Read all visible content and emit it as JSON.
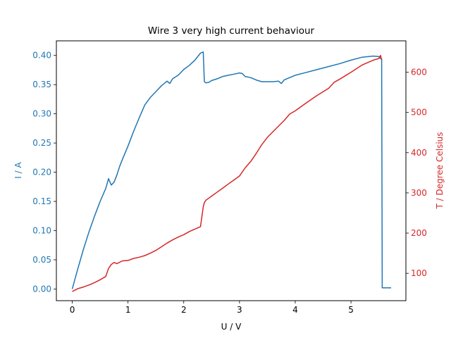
{
  "chart_data": {
    "type": "line",
    "title": "Wire 3 very high current behaviour",
    "xlabel": "U / V",
    "grid": false,
    "x_axis": {
      "range": [
        -0.285,
        5.985
      ],
      "ticks": [
        0,
        1,
        2,
        3,
        4,
        5
      ],
      "tick_labels": [
        "0",
        "1",
        "2",
        "3",
        "4",
        "5"
      ]
    },
    "y_left": {
      "label": "I / A",
      "color": "#1f77b4",
      "range": [
        -0.02,
        0.425
      ],
      "ticks": [
        0,
        0.05,
        0.1,
        0.15,
        0.2,
        0.25,
        0.3,
        0.35,
        0.4
      ],
      "tick_labels": [
        "0.00",
        "0.05",
        "0.10",
        "0.15",
        "0.20",
        "0.25",
        "0.30",
        "0.35",
        "0.40"
      ]
    },
    "y_right": {
      "label": "T / Degree Celsius",
      "color": "#d62728",
      "range": [
        32,
        678
      ],
      "ticks": [
        100,
        200,
        300,
        400,
        500,
        600
      ],
      "tick_labels": [
        "100",
        "200",
        "300",
        "400",
        "500",
        "600"
      ]
    },
    "series": [
      {
        "axis": "left",
        "color": "#1f77b4",
        "x": [
          0,
          0.1,
          0.2,
          0.3,
          0.4,
          0.5,
          0.6,
          0.63,
          0.65,
          0.7,
          0.75,
          0.8,
          0.85,
          0.9,
          1.0,
          1.1,
          1.2,
          1.3,
          1.4,
          1.5,
          1.6,
          1.7,
          1.75,
          1.8,
          1.9,
          2.0,
          2.1,
          2.2,
          2.3,
          2.35,
          2.37,
          2.4,
          2.45,
          2.5,
          2.6,
          2.7,
          2.8,
          2.9,
          3.0,
          3.05,
          3.1,
          3.2,
          3.3,
          3.4,
          3.5,
          3.6,
          3.7,
          3.75,
          3.8,
          3.9,
          4.0,
          4.2,
          4.4,
          4.6,
          4.8,
          5.0,
          5.2,
          5.4,
          5.5,
          5.52,
          5.53,
          5.55,
          5.56,
          5.6,
          5.72
        ],
        "y": [
          0.0,
          0.035,
          0.068,
          0.098,
          0.125,
          0.15,
          0.172,
          0.182,
          0.189,
          0.178,
          0.183,
          0.195,
          0.21,
          0.222,
          0.245,
          0.27,
          0.293,
          0.315,
          0.328,
          0.338,
          0.348,
          0.356,
          0.352,
          0.36,
          0.366,
          0.376,
          0.383,
          0.392,
          0.404,
          0.406,
          0.355,
          0.353,
          0.354,
          0.357,
          0.36,
          0.364,
          0.366,
          0.368,
          0.37,
          0.369,
          0.364,
          0.362,
          0.358,
          0.355,
          0.355,
          0.355,
          0.356,
          0.352,
          0.358,
          0.362,
          0.366,
          0.371,
          0.376,
          0.381,
          0.386,
          0.392,
          0.397,
          0.399,
          0.398,
          0.396,
          0.395,
          0.394,
          0.002,
          0.002,
          0.002
        ]
      },
      {
        "axis": "right",
        "color": "#d62728",
        "x": [
          0,
          0.1,
          0.2,
          0.3,
          0.4,
          0.5,
          0.6,
          0.65,
          0.7,
          0.75,
          0.8,
          0.9,
          1.0,
          1.1,
          1.2,
          1.3,
          1.4,
          1.5,
          1.6,
          1.7,
          1.8,
          1.9,
          2.0,
          2.1,
          2.2,
          2.3,
          2.35,
          2.37,
          2.4,
          2.5,
          2.6,
          2.7,
          2.8,
          2.9,
          3.0,
          3.05,
          3.1,
          3.2,
          3.3,
          3.4,
          3.5,
          3.6,
          3.7,
          3.8,
          3.9,
          4.0,
          4.2,
          4.4,
          4.6,
          4.7,
          4.8,
          5.0,
          5.2,
          5.4,
          5.5,
          5.53,
          5.55
        ],
        "y": [
          55,
          62,
          66,
          71,
          77,
          84,
          92,
          112,
          122,
          127,
          124,
          131,
          132,
          137,
          140,
          144,
          150,
          157,
          166,
          175,
          183,
          190,
          196,
          204,
          210,
          216,
          265,
          276,
          282,
          292,
          302,
          312,
          322,
          332,
          342,
          352,
          362,
          378,
          398,
          420,
          438,
          452,
          466,
          480,
          496,
          504,
          524,
          543,
          560,
          575,
          583,
          600,
          618,
          630,
          634,
          642,
          630
        ]
      }
    ]
  }
}
